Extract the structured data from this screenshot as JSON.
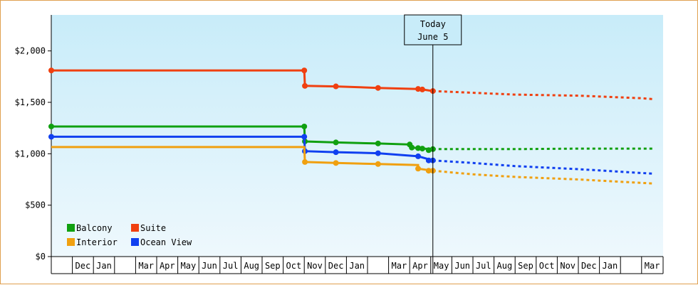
{
  "chart_data": {
    "type": "line",
    "title": "",
    "xlabel": "",
    "ylabel": "",
    "ylim": [
      0,
      2350
    ],
    "y_ticks": [
      {
        "value": 0,
        "label": "$0"
      },
      {
        "value": 500,
        "label": "$500"
      },
      {
        "value": 1000,
        "label": "$1,000"
      },
      {
        "value": 1500,
        "label": "$1,500"
      },
      {
        "value": 2000,
        "label": "$2,000"
      }
    ],
    "month_ticks": [
      "",
      "Dec",
      "Jan",
      "",
      "Mar",
      "Apr",
      "May",
      "Jun",
      "Jul",
      "Aug",
      "Sep",
      "Oct",
      "Nov",
      "Dec",
      "Jan",
      "",
      "Mar",
      "Apr",
      "May",
      "Jun",
      "Jul",
      "Aug",
      "Sep",
      "Oct",
      "Nov",
      "Dec",
      "Jan",
      "",
      "Mar"
    ],
    "today_index": 18.1,
    "today_label_line1": "Today",
    "today_label_line2": "June 5",
    "legend_placement": "bottom-left",
    "grid": false,
    "background_gradient": [
      "#c8ecf9",
      "#eef8fd"
    ],
    "series": [
      {
        "name": "Suite",
        "color": "#f04010",
        "points": [
          [
            0,
            1810
          ],
          [
            12,
            1810
          ],
          [
            12.03,
            1660
          ],
          [
            13.5,
            1655
          ],
          [
            15.5,
            1640
          ],
          [
            17.4,
            1630
          ],
          [
            17.6,
            1625
          ],
          [
            18.1,
            1610
          ]
        ],
        "markers": [
          [
            0,
            1810
          ],
          [
            12,
            1810
          ],
          [
            12.03,
            1660
          ],
          [
            13.5,
            1655
          ],
          [
            15.5,
            1640
          ],
          [
            17.4,
            1630
          ],
          [
            17.6,
            1625
          ],
          [
            18.1,
            1610
          ]
        ],
        "forecast": [
          [
            18.1,
            1610
          ],
          [
            22,
            1575
          ],
          [
            25,
            1565
          ],
          [
            28,
            1540
          ],
          [
            28.6,
            1530
          ]
        ]
      },
      {
        "name": "Balcony",
        "color": "#10a010",
        "points": [
          [
            0,
            1265
          ],
          [
            12,
            1265
          ],
          [
            12.03,
            1120
          ],
          [
            13.5,
            1110
          ],
          [
            15.5,
            1100
          ],
          [
            17.0,
            1090
          ],
          [
            17.1,
            1060
          ],
          [
            17.4,
            1055
          ],
          [
            17.6,
            1050
          ],
          [
            18.1,
            1045
          ]
        ],
        "markers": [
          [
            0,
            1265
          ],
          [
            12,
            1265
          ],
          [
            12.03,
            1120
          ],
          [
            13.5,
            1110
          ],
          [
            15.5,
            1100
          ],
          [
            17.0,
            1090
          ],
          [
            17.1,
            1060
          ],
          [
            17.4,
            1055
          ],
          [
            17.6,
            1050
          ],
          [
            18.1,
            1045
          ],
          [
            17.9,
            1035
          ]
        ],
        "forecast": [
          [
            18.1,
            1045
          ],
          [
            22,
            1045
          ],
          [
            25,
            1050
          ],
          [
            28.6,
            1050
          ]
        ]
      },
      {
        "name": "Ocean View",
        "color": "#1040f0",
        "points": [
          [
            0,
            1165
          ],
          [
            12,
            1165
          ],
          [
            12.03,
            1025
          ],
          [
            13.5,
            1015
          ],
          [
            15.5,
            1005
          ],
          [
            17.4,
            975
          ],
          [
            18.1,
            935
          ]
        ],
        "markers": [
          [
            0,
            1165
          ],
          [
            12,
            1165
          ],
          [
            12.03,
            1025
          ],
          [
            13.5,
            1015
          ],
          [
            15.5,
            1005
          ],
          [
            17.4,
            975
          ],
          [
            17.9,
            935
          ],
          [
            18.1,
            935
          ]
        ],
        "forecast": [
          [
            18.1,
            935
          ],
          [
            20,
            910
          ],
          [
            22,
            880
          ],
          [
            25,
            850
          ],
          [
            28.6,
            805
          ]
        ]
      },
      {
        "name": "Interior",
        "color": "#f0a010",
        "points": [
          [
            0,
            1065
          ],
          [
            12,
            1065
          ],
          [
            12.03,
            920
          ],
          [
            13.5,
            910
          ],
          [
            15.5,
            900
          ],
          [
            17.4,
            890
          ],
          [
            17.4,
            855
          ],
          [
            18.1,
            835
          ]
        ],
        "markers": [
          [
            12.03,
            920
          ],
          [
            13.5,
            910
          ],
          [
            15.5,
            900
          ],
          [
            17.4,
            855
          ],
          [
            17.9,
            835
          ],
          [
            18.1,
            835
          ]
        ],
        "forecast": [
          [
            18.1,
            835
          ],
          [
            20,
            800
          ],
          [
            22,
            775
          ],
          [
            25,
            750
          ],
          [
            28.6,
            710
          ]
        ]
      }
    ],
    "legend": [
      {
        "name": "Balcony",
        "color": "#10a010"
      },
      {
        "name": "Suite",
        "color": "#f04010"
      },
      {
        "name": "Interior",
        "color": "#f0a010"
      },
      {
        "name": "Ocean View",
        "color": "#1040f0"
      }
    ]
  }
}
